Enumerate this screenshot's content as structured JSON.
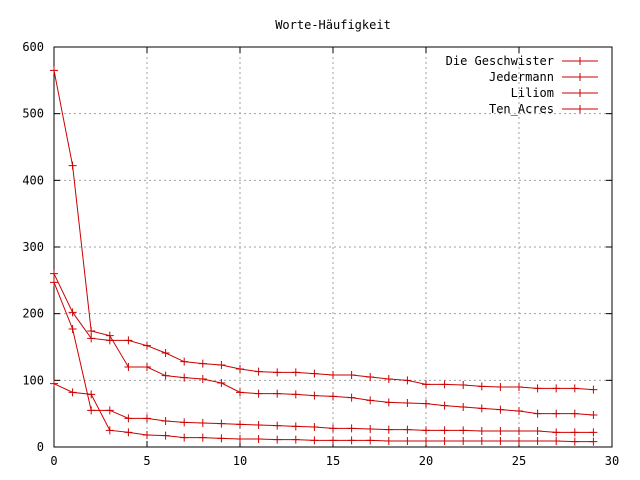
{
  "chart_data": {
    "type": "line",
    "title": "Worte-Häufigkeit",
    "xlabel": "",
    "ylabel": "",
    "xlim": [
      0,
      30
    ],
    "ylim": [
      0,
      600
    ],
    "x_ticks": [
      0,
      5,
      10,
      15,
      20,
      25,
      30
    ],
    "y_ticks": [
      0,
      100,
      200,
      300,
      400,
      500,
      600
    ],
    "grid": true,
    "legend_position": "top-right",
    "color": "#cc0000",
    "x": [
      0,
      1,
      2,
      3,
      4,
      5,
      6,
      7,
      8,
      9,
      10,
      11,
      12,
      13,
      14,
      15,
      16,
      17,
      18,
      19,
      20,
      21,
      22,
      23,
      24,
      25,
      26,
      27,
      28,
      29
    ],
    "series": [
      {
        "name": "Die Geschwister",
        "values": [
          565,
          422,
          174,
          167,
          120,
          120,
          107,
          104,
          102,
          96,
          82,
          80,
          80,
          79,
          77,
          76,
          74,
          70,
          67,
          66,
          65,
          62,
          60,
          58,
          56,
          54,
          50,
          50,
          50,
          48
        ]
      },
      {
        "name": "Jedermann",
        "values": [
          260,
          202,
          163,
          160,
          160,
          152,
          141,
          128,
          125,
          123,
          117,
          113,
          112,
          112,
          110,
          108,
          108,
          105,
          102,
          100,
          94,
          94,
          93,
          91,
          90,
          90,
          88,
          88,
          88,
          86
        ]
      },
      {
        "name": "Liliom",
        "values": [
          247,
          177,
          55,
          55,
          43,
          43,
          39,
          37,
          36,
          35,
          34,
          33,
          32,
          31,
          30,
          28,
          28,
          27,
          26,
          26,
          25,
          25,
          25,
          24,
          24,
          24,
          24,
          22,
          22,
          22
        ]
      },
      {
        "name": "Ten_Acres",
        "values": [
          95,
          82,
          79,
          25,
          22,
          18,
          17,
          14,
          14,
          13,
          12,
          12,
          11,
          11,
          10,
          10,
          10,
          10,
          9,
          9,
          9,
          9,
          9,
          9,
          9,
          9,
          9,
          9,
          8,
          8
        ]
      }
    ]
  }
}
